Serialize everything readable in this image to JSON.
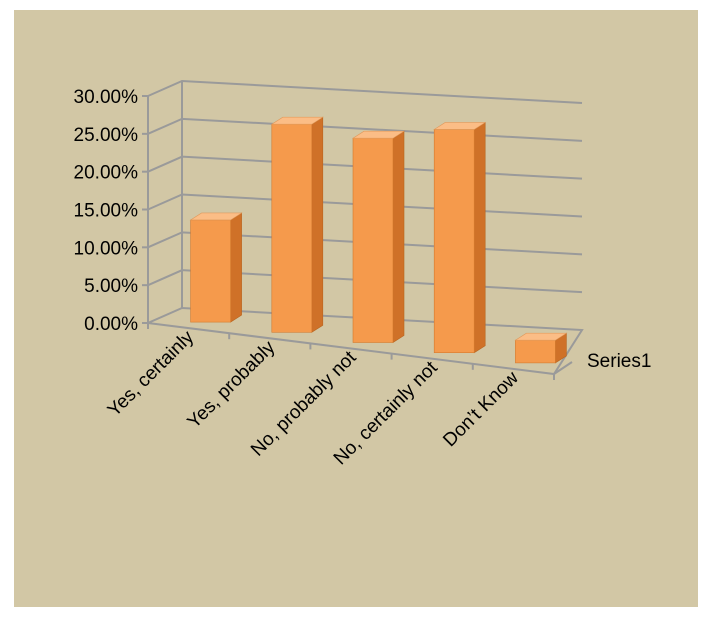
{
  "chart_data": {
    "type": "bar",
    "style": "3d-column",
    "categories": [
      "Yes, certainly",
      "Yes, probably",
      "No, probably not",
      "No, certainly not",
      "Don’t Know"
    ],
    "series": [
      {
        "name": "Series1",
        "values": [
          13.5,
          27.5,
          27.0,
          29.5,
          3.0
        ]
      }
    ],
    "y_tick_labels": [
      "0.00%",
      "5.00%",
      "10.00%",
      "15.00%",
      "20.00%",
      "25.00%",
      "30.00%"
    ],
    "ylim": [
      0,
      30
    ],
    "grid": true,
    "legend": "none",
    "colors": {
      "background": "#d2c7a5",
      "bar_front": "#f59a4c",
      "bar_side": "#cf7128",
      "bar_top": "#fbbd86",
      "gridline": "#9a9a9a"
    }
  }
}
